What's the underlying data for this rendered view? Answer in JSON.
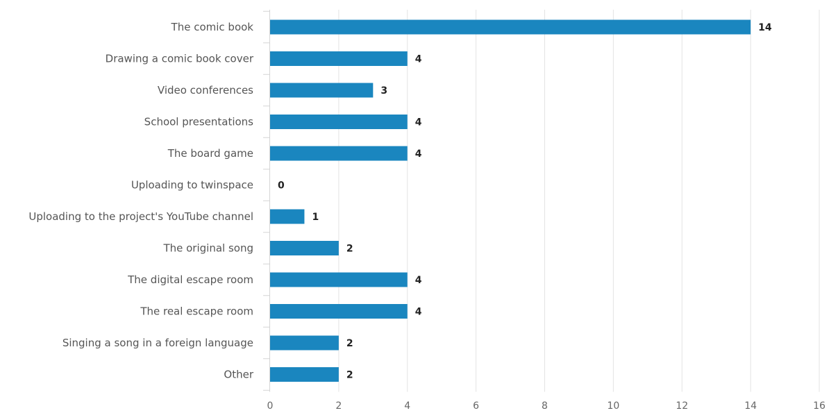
{
  "chart_data": {
    "type": "bar",
    "orientation": "horizontal",
    "categories": [
      "The comic book",
      "Drawing a comic book cover",
      "Video conferences",
      "School presentations",
      "The board game",
      "Uploading to twinspace",
      "Uploading to the project's YouTube channel",
      "The original song",
      "The digital escape room",
      "The real escape room",
      "Singing a song in a foreign language",
      "Other"
    ],
    "values": [
      14,
      4,
      3,
      4,
      4,
      0,
      1,
      2,
      4,
      4,
      2,
      2
    ],
    "value_labels": [
      "14",
      "4",
      "3",
      "4",
      "4",
      "0",
      "1",
      "2",
      "4",
      "4",
      "2",
      "2"
    ],
    "x_ticks": [
      "0",
      "2",
      "4",
      "6",
      "8",
      "10",
      "12",
      "14",
      "16"
    ],
    "xlim": [
      0,
      16
    ],
    "grid": true,
    "legend": "none",
    "bar_color": "#1a86bf",
    "title": "",
    "xlabel": "",
    "ylabel": ""
  }
}
